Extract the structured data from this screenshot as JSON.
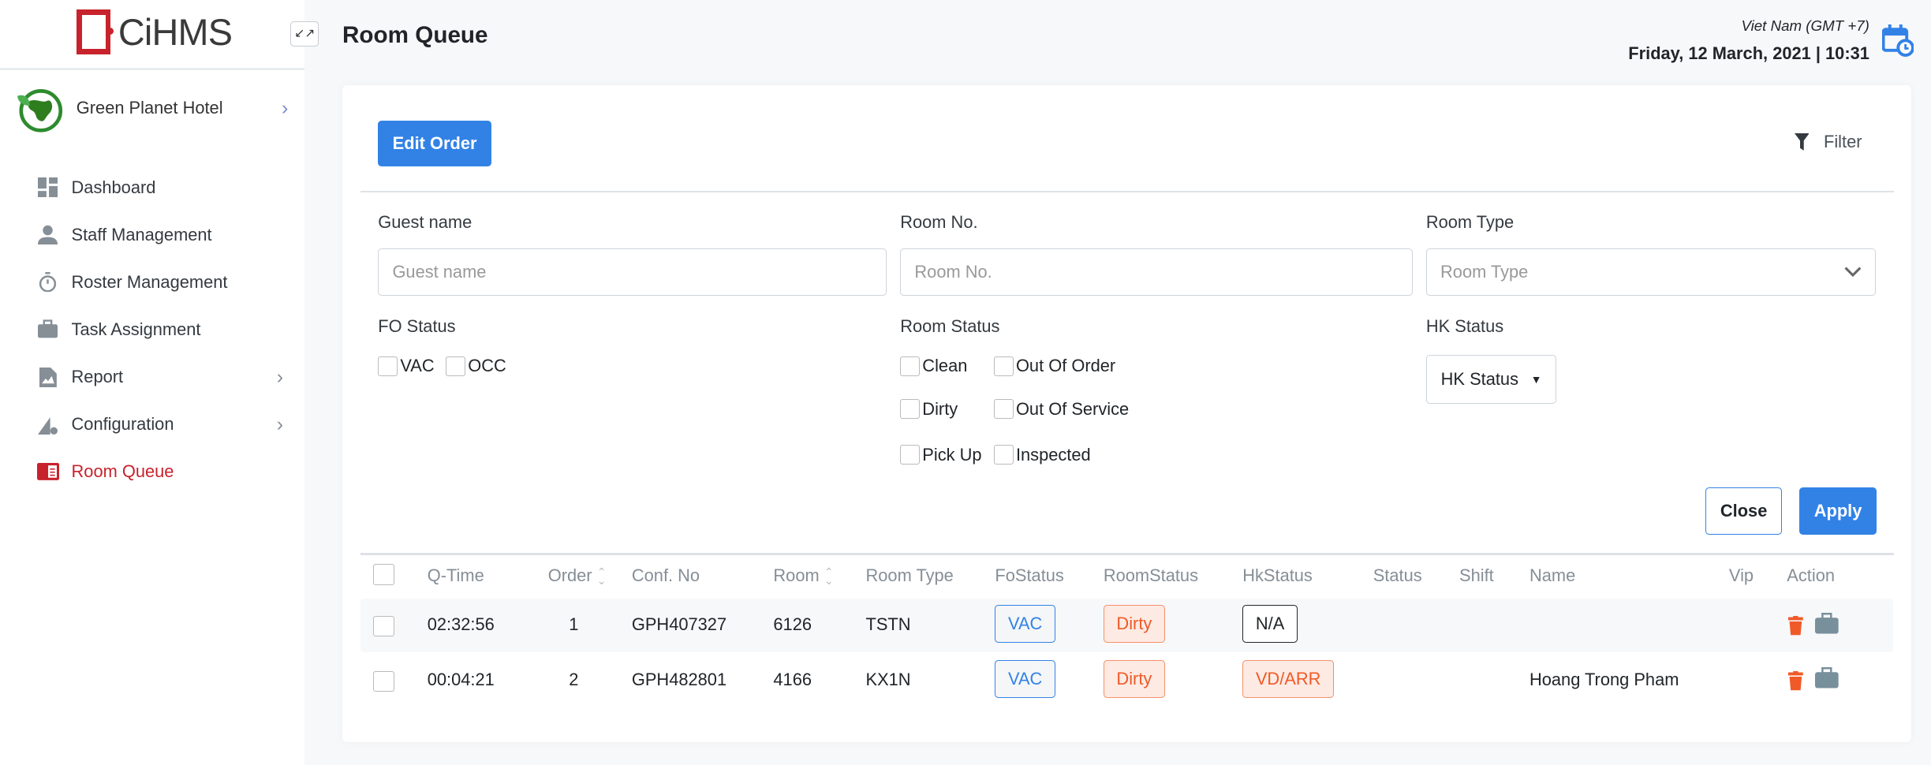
{
  "sidebar": {
    "logo": "CiHMS",
    "hotel": "Green Planet Hotel",
    "items": [
      {
        "label": "Dashboard",
        "icon": "dashboard-icon"
      },
      {
        "label": "Staff Management",
        "icon": "person-icon"
      },
      {
        "label": "Roster Management",
        "icon": "stopwatch-icon"
      },
      {
        "label": "Task Assignment",
        "icon": "briefcase-icon"
      },
      {
        "label": "Report",
        "icon": "report-icon",
        "expandable": true
      },
      {
        "label": "Configuration",
        "icon": "configuration-icon",
        "expandable": true
      },
      {
        "label": "Room Queue",
        "icon": "room-queue-icon",
        "active": true
      }
    ]
  },
  "header": {
    "title": "Room Queue",
    "timezone": "Viet Nam (GMT +7)",
    "datetime": "Friday, 12 March, 2021 | 10:31"
  },
  "toolbar": {
    "edit_order": "Edit Order",
    "filter": "Filter"
  },
  "filters": {
    "guest_name": {
      "label": "Guest name",
      "placeholder": "Guest name"
    },
    "room_no": {
      "label": "Room No.",
      "placeholder": "Room No."
    },
    "room_type": {
      "label": "Room Type",
      "placeholder": "Room Type"
    },
    "fo_status": {
      "label": "FO Status",
      "options": [
        "VAC",
        "OCC"
      ]
    },
    "room_status": {
      "label": "Room Status",
      "options": [
        "Clean",
        "Out Of Order",
        "Dirty",
        "Out Of Service",
        "Pick Up",
        "Inspected"
      ]
    },
    "hk_status": {
      "label": "HK Status",
      "value": "HK Status"
    },
    "close": "Close",
    "apply": "Apply"
  },
  "table": {
    "columns": [
      "Q-Time",
      "Order",
      "Conf. No",
      "Room",
      "Room Type",
      "FoStatus",
      "RoomStatus",
      "HkStatus",
      "Status",
      "Shift",
      "Name",
      "Vip",
      "Action"
    ],
    "rows": [
      {
        "qtime": "02:32:56",
        "order": "1",
        "conf": "GPH407327",
        "room": "6126",
        "room_type": "TSTN",
        "fo": "VAC",
        "room_status": "Dirty",
        "hk": "N/A",
        "name": ""
      },
      {
        "qtime": "00:04:21",
        "order": "2",
        "conf": "GPH482801",
        "room": "4166",
        "room_type": "KX1N",
        "fo": "VAC",
        "room_status": "Dirty",
        "hk": "VD/ARR",
        "name": "Hoang Trong Pham"
      }
    ]
  },
  "colors": {
    "primary": "#3282e6",
    "brand": "#c8222c",
    "dirty": "#f05a28"
  }
}
